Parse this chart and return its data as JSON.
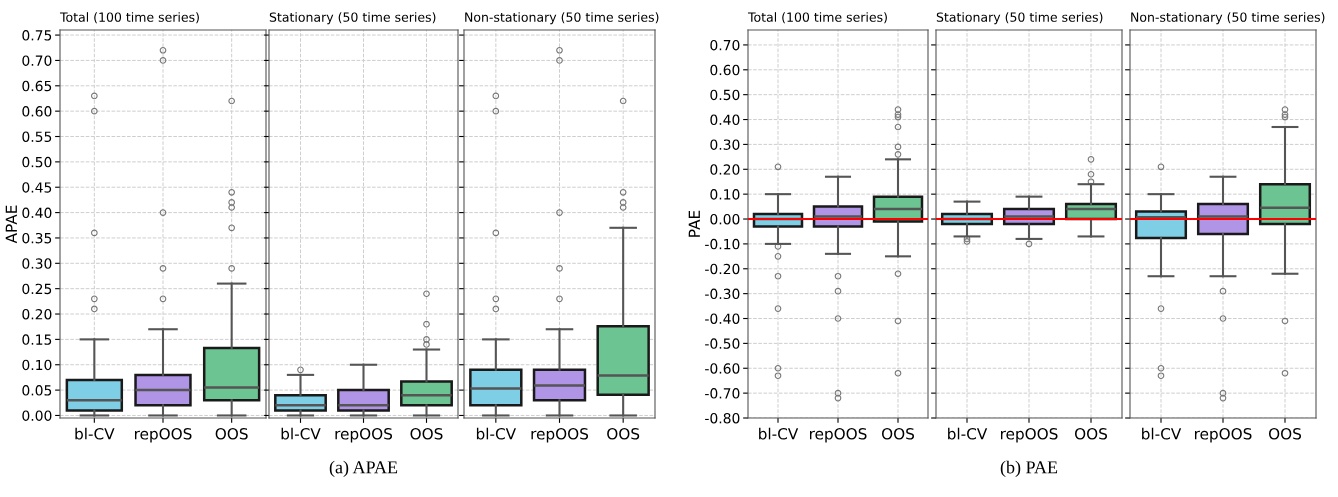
{
  "chart_data": [
    {
      "type": "box",
      "title": "Total (100 time series)",
      "ylabel": "APAE",
      "categories": [
        "bl-CV",
        "repOOS",
        "OOS"
      ],
      "colors": [
        "#7ecfe6",
        "#b094e6",
        "#6cc492"
      ],
      "boxes": [
        {
          "low": 0,
          "q1": 0.01,
          "median": 0.03,
          "q3": 0.07,
          "high": 0.15,
          "outliers": [
            0.21,
            0.23,
            0.36,
            0.6,
            0.63
          ]
        },
        {
          "low": 0,
          "q1": 0.02,
          "median": 0.05,
          "q3": 0.08,
          "high": 0.17,
          "outliers": [
            0.23,
            0.29,
            0.4,
            0.7,
            0.72
          ]
        },
        {
          "low": 0,
          "q1": 0.03,
          "median": 0.055,
          "q3": 0.133,
          "high": 0.26,
          "outliers": [
            0.29,
            0.37,
            0.41,
            0.42,
            0.44,
            0.62
          ]
        }
      ],
      "ylim": [
        -0.005,
        0.76
      ],
      "yticks": [
        {
          "value": 0,
          "label": "0.00"
        },
        {
          "value": 0.05,
          "label": "0.05"
        },
        {
          "value": 0.1,
          "label": "0.10"
        },
        {
          "value": 0.15,
          "label": "0.15"
        },
        {
          "value": 0.2,
          "label": "0.20"
        },
        {
          "value": 0.25,
          "label": "0.25"
        },
        {
          "value": 0.3,
          "label": "0.30"
        },
        {
          "value": 0.35,
          "label": "0.35"
        },
        {
          "value": 0.4,
          "label": "0.40"
        },
        {
          "value": 0.45,
          "label": "0.45"
        },
        {
          "value": 0.5,
          "label": "0.50"
        },
        {
          "value": 0.55,
          "label": "0.55"
        },
        {
          "value": 0.6,
          "label": "0.60"
        },
        {
          "value": 0.65,
          "label": "0.65"
        },
        {
          "value": 0.7,
          "label": "0.70"
        },
        {
          "value": 0.75,
          "label": "0.75"
        }
      ],
      "grid": true
    },
    {
      "type": "box",
      "title": "Stationary (50 time series)",
      "categories": [
        "bl-CV",
        "repOOS",
        "OOS"
      ],
      "colors": [
        "#7ecfe6",
        "#b094e6",
        "#6cc492"
      ],
      "boxes": [
        {
          "low": 0,
          "q1": 0.01,
          "median": 0.02,
          "q3": 0.04,
          "high": 0.08,
          "outliers": [
            0.09
          ]
        },
        {
          "low": 0,
          "q1": 0.01,
          "median": 0.02,
          "q3": 0.05,
          "high": 0.1
        },
        {
          "low": 0,
          "q1": 0.02,
          "median": 0.04,
          "q3": 0.067,
          "high": 0.13,
          "outliers": [
            0.14,
            0.15,
            0.18,
            0.24
          ]
        }
      ],
      "ylim": [
        -0.005,
        0.76
      ],
      "yticks": [
        {
          "value": 0,
          "label": null
        },
        {
          "value": 0.05,
          "label": null
        },
        {
          "value": 0.1,
          "label": null
        },
        {
          "value": 0.15,
          "label": null
        },
        {
          "value": 0.2,
          "label": null
        },
        {
          "value": 0.25,
          "label": null
        },
        {
          "value": 0.3,
          "label": null
        },
        {
          "value": 0.35,
          "label": null
        },
        {
          "value": 0.4,
          "label": null
        },
        {
          "value": 0.45,
          "label": null
        },
        {
          "value": 0.5,
          "label": null
        },
        {
          "value": 0.55,
          "label": null
        },
        {
          "value": 0.6,
          "label": null
        },
        {
          "value": 0.65,
          "label": null
        },
        {
          "value": 0.7,
          "label": null
        },
        {
          "value": 0.75,
          "label": null
        }
      ],
      "grid": true,
      "tick_labels": "x",
      "annotations": [
        "(a) APAE"
      ]
    },
    {
      "type": "box",
      "title": "Non-stationary (50 time series)",
      "categories": [
        "bl-CV",
        "repOOS",
        "OOS"
      ],
      "colors": [
        "#7ecfe6",
        "#b094e6",
        "#6cc492"
      ],
      "boxes": [
        {
          "low": 0,
          "q1": 0.02,
          "median": 0.053,
          "q3": 0.09,
          "high": 0.15,
          "outliers": [
            0.21,
            0.23,
            0.36,
            0.6,
            0.63
          ]
        },
        {
          "low": 0,
          "q1": 0.03,
          "median": 0.059,
          "q3": 0.09,
          "high": 0.17,
          "outliers": [
            0.23,
            0.29,
            0.4,
            0.7,
            0.72
          ]
        },
        {
          "low": 0,
          "q1": 0.041,
          "median": 0.079,
          "q3": 0.176,
          "high": 0.37,
          "outliers": [
            0.41,
            0.42,
            0.44,
            0.62
          ]
        }
      ],
      "ylim": [
        -0.005,
        0.76
      ],
      "yticks": [
        {
          "value": 0,
          "label": null
        },
        {
          "value": 0.05,
          "label": null
        },
        {
          "value": 0.1,
          "label": null
        },
        {
          "value": 0.15,
          "label": null
        },
        {
          "value": 0.2,
          "label": null
        },
        {
          "value": 0.25,
          "label": null
        },
        {
          "value": 0.3,
          "label": null
        },
        {
          "value": 0.35,
          "label": null
        },
        {
          "value": 0.4,
          "label": null
        },
        {
          "value": 0.45,
          "label": null
        },
        {
          "value": 0.5,
          "label": null
        },
        {
          "value": 0.55,
          "label": null
        },
        {
          "value": 0.6,
          "label": null
        },
        {
          "value": 0.65,
          "label": null
        },
        {
          "value": 0.7,
          "label": null
        },
        {
          "value": 0.75,
          "label": null
        }
      ],
      "grid": true,
      "tick_labels": "x"
    },
    {
      "type": "box",
      "title": "Total (100 time series)",
      "ylabel": "PAE",
      "categories": [
        "bl-CV",
        "repOOS",
        "OOS"
      ],
      "colors": [
        "#7ecfe6",
        "#b094e6",
        "#6cc492"
      ],
      "boxes": [
        {
          "low": -0.1,
          "q1": -0.03,
          "median": 0.0,
          "q3": 0.02,
          "high": 0.1,
          "outliers": [
            -0.11,
            -0.15,
            -0.23,
            -0.36,
            -0.6,
            -0.63,
            0.21
          ]
        },
        {
          "low": -0.14,
          "q1": -0.03,
          "median": 0.01,
          "q3": 0.05,
          "high": 0.17,
          "outliers": [
            -0.23,
            -0.29,
            -0.4,
            -0.7,
            -0.72
          ]
        },
        {
          "low": -0.15,
          "q1": -0.01,
          "median": 0.04,
          "q3": 0.09,
          "high": 0.24,
          "outliers": [
            -0.22,
            -0.41,
            -0.62,
            0.26,
            0.29,
            0.37,
            0.41,
            0.42,
            0.44
          ]
        }
      ],
      "ylim": [
        -0.8,
        0.76
      ],
      "yticks": [
        {
          "value": -0.8,
          "label": "-0.80"
        },
        {
          "value": -0.7,
          "label": "-0.70"
        },
        {
          "value": -0.6,
          "label": "-0.60"
        },
        {
          "value": -0.5,
          "label": "-0.50"
        },
        {
          "value": -0.4,
          "label": "-0.40"
        },
        {
          "value": -0.3,
          "label": "-0.30"
        },
        {
          "value": -0.2,
          "label": "-0.20"
        },
        {
          "value": -0.1,
          "label": "-0.10"
        },
        {
          "value": 0,
          "label": "0.00"
        },
        {
          "value": 0.1,
          "label": "0.10"
        },
        {
          "value": 0.2,
          "label": "0.20"
        },
        {
          "value": 0.3,
          "label": "0.30"
        },
        {
          "value": 0.4,
          "label": "0.40"
        },
        {
          "value": 0.5,
          "label": "0.50"
        },
        {
          "value": 0.6,
          "label": "0.60"
        },
        {
          "value": 0.7,
          "label": "0.70"
        }
      ],
      "grid": true,
      "ref_lines": [
        {
          "axis": "y",
          "value": 0,
          "color": "#ff0000"
        }
      ]
    },
    {
      "type": "box",
      "title": "Stationary (50 time series)",
      "categories": [
        "bl-CV",
        "repOOS",
        "OOS"
      ],
      "colors": [
        "#7ecfe6",
        "#b094e6",
        "#6cc492"
      ],
      "boxes": [
        {
          "low": -0.07,
          "q1": -0.02,
          "median": 0.0,
          "q3": 0.02,
          "high": 0.07,
          "outliers": [
            -0.08,
            -0.09
          ]
        },
        {
          "low": -0.08,
          "q1": -0.02,
          "median": 0.01,
          "q3": 0.04,
          "high": 0.09,
          "outliers": [
            -0.1
          ]
        },
        {
          "low": -0.07,
          "q1": 0.0,
          "median": 0.04,
          "q3": 0.06,
          "high": 0.14,
          "outliers": [
            0.15,
            0.18,
            0.24
          ]
        }
      ],
      "ylim": [
        -0.8,
        0.76
      ],
      "yticks": [
        {
          "value": -0.8,
          "label": null
        },
        {
          "value": -0.7,
          "label": null
        },
        {
          "value": -0.6,
          "label": null
        },
        {
          "value": -0.5,
          "label": null
        },
        {
          "value": -0.4,
          "label": null
        },
        {
          "value": -0.3,
          "label": null
        },
        {
          "value": -0.2,
          "label": null
        },
        {
          "value": -0.1,
          "label": null
        },
        {
          "value": 0,
          "label": null
        },
        {
          "value": 0.1,
          "label": null
        },
        {
          "value": 0.2,
          "label": null
        },
        {
          "value": 0.3,
          "label": null
        },
        {
          "value": 0.4,
          "label": null
        },
        {
          "value": 0.5,
          "label": null
        },
        {
          "value": 0.6,
          "label": null
        },
        {
          "value": 0.7,
          "label": null
        }
      ],
      "grid": true,
      "tick_labels": "x",
      "ref_lines": [
        {
          "axis": "y",
          "value": 0,
          "color": "#ff0000"
        }
      ],
      "annotations": [
        "(b) PAE"
      ]
    },
    {
      "type": "box",
      "title": "Non-stationary (50 time series)",
      "categories": [
        "bl-CV",
        "repOOS",
        "OOS"
      ],
      "colors": [
        "#7ecfe6",
        "#b094e6",
        "#6cc492"
      ],
      "boxes": [
        {
          "low": -0.23,
          "q1": -0.076,
          "median": 0.007,
          "q3": 0.03,
          "high": 0.1,
          "outliers": [
            0.21,
            -0.36,
            -0.6,
            -0.63
          ]
        },
        {
          "low": -0.23,
          "q1": -0.06,
          "median": 0.01,
          "q3": 0.06,
          "high": 0.17,
          "outliers": [
            -0.29,
            -0.4,
            -0.7,
            -0.72
          ]
        },
        {
          "low": -0.22,
          "q1": -0.02,
          "median": 0.045,
          "q3": 0.14,
          "high": 0.37,
          "outliers": [
            -0.41,
            -0.62,
            0.41,
            0.42,
            0.44
          ]
        }
      ],
      "ylim": [
        -0.8,
        0.76
      ],
      "yticks": [
        {
          "value": -0.8,
          "label": null
        },
        {
          "value": -0.7,
          "label": null
        },
        {
          "value": -0.6,
          "label": null
        },
        {
          "value": -0.5,
          "label": null
        },
        {
          "value": -0.4,
          "label": null
        },
        {
          "value": -0.3,
          "label": null
        },
        {
          "value": -0.2,
          "label": null
        },
        {
          "value": -0.1,
          "label": null
        },
        {
          "value": 0,
          "label": null
        },
        {
          "value": 0.1,
          "label": null
        },
        {
          "value": 0.2,
          "label": null
        },
        {
          "value": 0.3,
          "label": null
        },
        {
          "value": 0.4,
          "label": null
        },
        {
          "value": 0.5,
          "label": null
        },
        {
          "value": 0.6,
          "label": null
        },
        {
          "value": 0.7,
          "label": null
        }
      ],
      "grid": true,
      "tick_labels": "x",
      "ref_lines": [
        {
          "axis": "y",
          "value": 0,
          "color": "#ff0000"
        }
      ]
    }
  ]
}
